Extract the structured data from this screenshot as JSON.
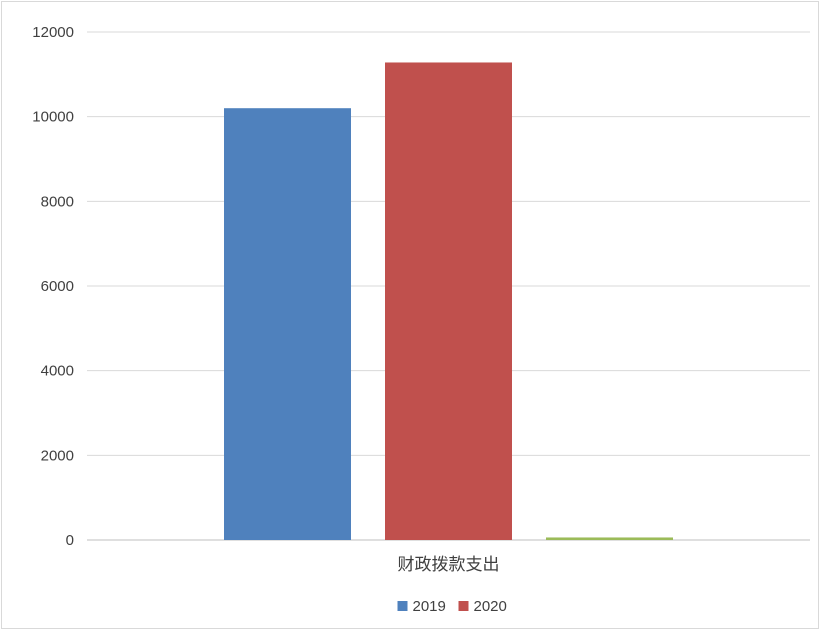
{
  "chart_data": {
    "type": "bar",
    "categories": [
      "财政拨款支出"
    ],
    "series": [
      {
        "name": "2019",
        "values": [
          10200
        ],
        "color": "#4f81bd"
      },
      {
        "name": "2020",
        "values": [
          11280
        ],
        "color": "#c0504d"
      },
      {
        "values": [
          60
        ],
        "color": "#9bbb59"
      }
    ],
    "ylim": [
      0,
      12000
    ],
    "yticks": [
      "0",
      "2000",
      "4000",
      "6000",
      "8000",
      "10000",
      "12000"
    ],
    "grid": true,
    "legend_position": "bottom",
    "legend": [
      "2019",
      "2020"
    ]
  }
}
